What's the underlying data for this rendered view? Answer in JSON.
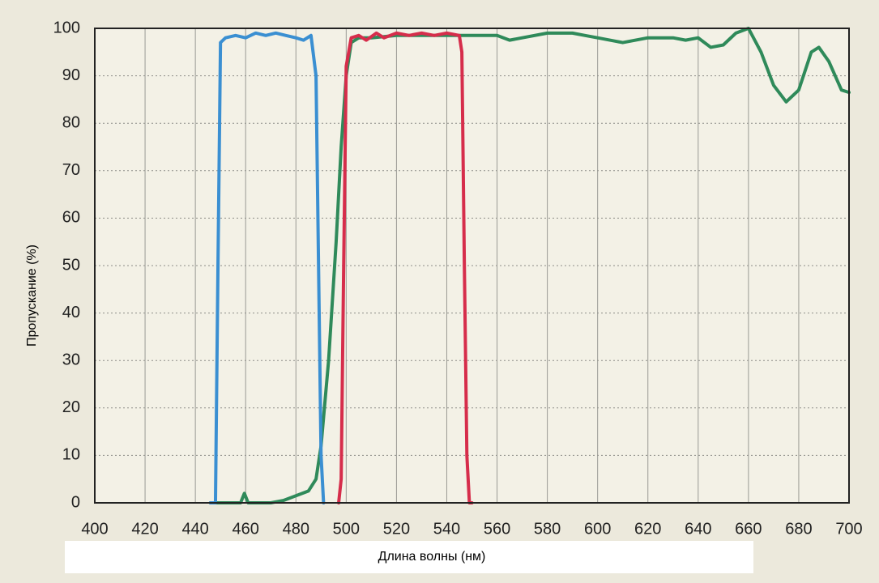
{
  "chart_data": {
    "type": "line",
    "xlabel": "Длина волны (нм)",
    "ylabel": "Пропускание (%)",
    "xlim": [
      400,
      700
    ],
    "ylim": [
      0,
      100
    ],
    "xticks": [
      400,
      420,
      440,
      460,
      480,
      500,
      520,
      540,
      560,
      580,
      600,
      620,
      640,
      660,
      680,
      700
    ],
    "yticks": [
      0,
      10,
      20,
      30,
      40,
      50,
      60,
      70,
      80,
      90,
      100
    ],
    "grid": true,
    "series": [
      {
        "color": "#2f8a5a",
        "x": [
          446,
          458,
          459.5,
          461,
          470,
          475,
          480,
          485,
          488,
          490,
          493,
          496,
          498,
          500,
          502,
          505,
          510,
          520,
          530,
          540,
          550,
          560,
          565,
          570,
          580,
          590,
          595,
          600,
          610,
          620,
          630,
          635,
          640,
          645,
          650,
          655,
          660,
          665,
          670,
          675,
          680,
          685,
          688,
          692,
          697,
          700
        ],
        "values": [
          0,
          0,
          2,
          0,
          0,
          0.5,
          1.5,
          2.5,
          5,
          12,
          30,
          55,
          75,
          90,
          97,
          98,
          98,
          98.5,
          98.5,
          98.5,
          98.5,
          98.5,
          97.5,
          98,
          99,
          99,
          98.5,
          98,
          97,
          98,
          98,
          97.5,
          98,
          96,
          96.5,
          99,
          100,
          95,
          88,
          84.5,
          87,
          95,
          96,
          93,
          87,
          86.5
        ]
      },
      {
        "color": "#3a8fd2",
        "x": [
          446,
          448,
          449,
          450,
          452,
          456,
          460,
          464,
          468,
          472,
          476,
          480,
          483,
          486,
          488,
          489,
          490,
          491
        ],
        "values": [
          0,
          0,
          50,
          97,
          98,
          98.5,
          98,
          99,
          98.5,
          99,
          98.5,
          98,
          97.5,
          98.5,
          90,
          50,
          10,
          0
        ]
      },
      {
        "color": "#d62d4b",
        "x": [
          497,
          498,
          499,
          500,
          502,
          505,
          508,
          512,
          515,
          520,
          525,
          530,
          535,
          540,
          545,
          546,
          547,
          548,
          549,
          550
        ],
        "values": [
          0,
          5,
          50,
          92,
          98,
          98.5,
          97.5,
          99,
          98,
          99,
          98.5,
          99,
          98.5,
          99,
          98.5,
          95,
          50,
          10,
          0,
          0
        ]
      }
    ]
  }
}
